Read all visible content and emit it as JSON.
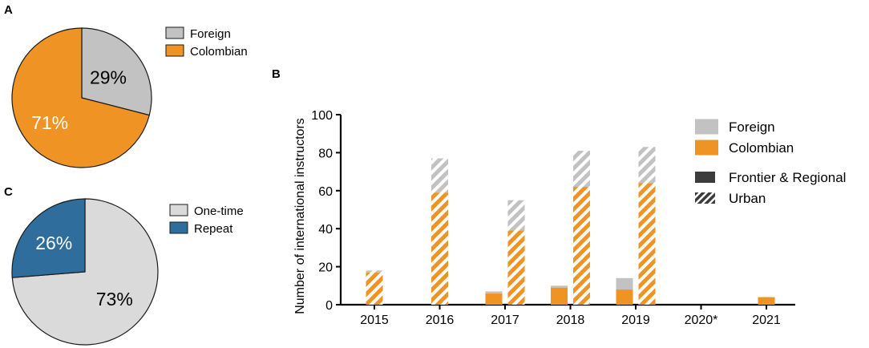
{
  "panels": {
    "a": "A",
    "b": "B",
    "c": "C"
  },
  "colors": {
    "foreign": "#c2c2c2",
    "colombian": "#ef9325",
    "one_time": "#dadada",
    "repeat": "#2f6e9c",
    "dark_key": "#3c3c3c"
  },
  "chart_data": [
    {
      "panel": "A",
      "type": "pie",
      "labels": [
        "Foreign",
        "Colombian"
      ],
      "values": [
        29,
        71
      ],
      "slice_labels": [
        "29%",
        "71%"
      ],
      "legend": [
        "Foreign",
        "Colombian"
      ],
      "legend_placement": "right"
    },
    {
      "panel": "C",
      "type": "pie",
      "labels": [
        "One-time",
        "Repeat"
      ],
      "values": [
        73,
        26
      ],
      "slice_labels": [
        "73%",
        "26%"
      ],
      "legend": [
        "One-time",
        "Repeat"
      ],
      "legend_placement": "right"
    },
    {
      "panel": "B",
      "type": "bar",
      "stacked": true,
      "ylabel": "Number of international instructors",
      "ylim": [
        0,
        100
      ],
      "yticks": [
        0,
        20,
        40,
        60,
        80,
        100
      ],
      "categories": [
        "2015",
        "2016",
        "2017",
        "2018",
        "2019",
        "2020*",
        "2021"
      ],
      "legend": [
        "Foreign",
        "Colombian",
        "Frontier & Regional",
        "Urban"
      ],
      "legend_placement": "right",
      "bars": [
        {
          "category": "2015",
          "setting": "Urban",
          "colombian": 17,
          "foreign": 1
        },
        {
          "category": "2016",
          "setting": "Urban",
          "colombian": 59,
          "foreign": 18
        },
        {
          "category": "2017",
          "setting": "Frontier & Regional",
          "colombian": 6,
          "foreign": 1
        },
        {
          "category": "2017",
          "setting": "Urban",
          "colombian": 39,
          "foreign": 16
        },
        {
          "category": "2018",
          "setting": "Frontier & Regional",
          "colombian": 9,
          "foreign": 1
        },
        {
          "category": "2018",
          "setting": "Urban",
          "colombian": 62,
          "foreign": 19
        },
        {
          "category": "2019",
          "setting": "Frontier & Regional",
          "colombian": 8,
          "foreign": 6
        },
        {
          "category": "2019",
          "setting": "Urban",
          "colombian": 64,
          "foreign": 19
        },
        {
          "category": "2021",
          "setting": "Frontier & Regional",
          "colombian": 4,
          "foreign": 0
        }
      ]
    }
  ]
}
